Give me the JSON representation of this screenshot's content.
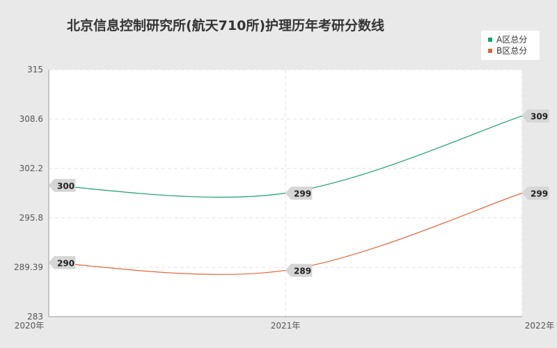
{
  "title": "北京信息控制研究所(航天710所)护理历年考研分数线",
  "legend": [
    {
      "label": "A区总分",
      "color": "#1a9e6f"
    },
    {
      "label": "B区总分",
      "color": "#e0673a"
    }
  ],
  "chart_data": {
    "type": "line",
    "title": "北京信息控制研究所(航天710所)护理历年考研分数线",
    "categories": [
      "2020年",
      "2021年",
      "2022年"
    ],
    "y_ticks": [
      "315",
      "308.6",
      "302.2",
      "295.8",
      "289.39",
      "283"
    ],
    "ylim": [
      283,
      315
    ],
    "grid": true,
    "legend_position": "top-right",
    "series": [
      {
        "name": "A区总分",
        "color": "#1a9e6f",
        "values": [
          300,
          299,
          309
        ]
      },
      {
        "name": "B区总分",
        "color": "#e0673a",
        "values": [
          290,
          289,
          299
        ]
      }
    ]
  }
}
